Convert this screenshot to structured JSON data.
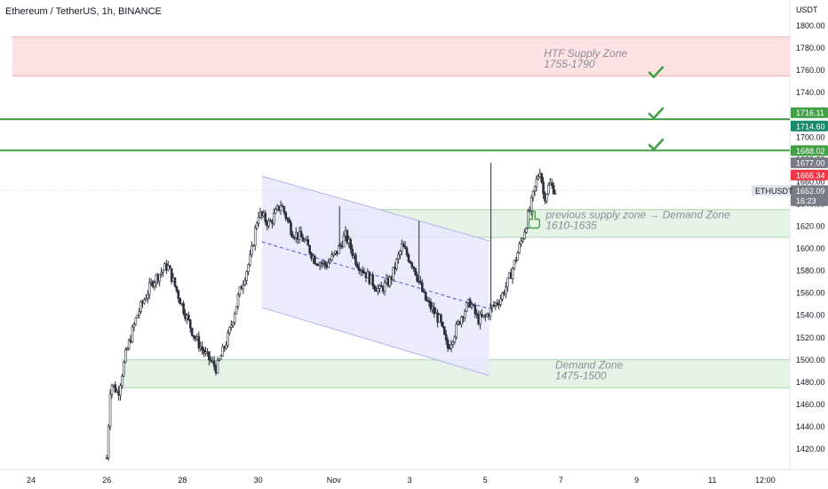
{
  "header": {
    "title": "Ethereum / TetherUS, 1h, BINANCE",
    "currency": "USDT"
  },
  "chart_data": {
    "type": "candlestick",
    "symbol": "ETHUSDT",
    "ylim": [
      1405,
      1818
    ],
    "x_day_range": [
      23.5,
      37.8
    ],
    "y_ticks": [
      "1420.00",
      "1440.00",
      "1460.00",
      "1480.00",
      "1500.00",
      "1520.00",
      "1540.00",
      "1560.00",
      "1580.00",
      "1600.00",
      "1620.00",
      "1640.00",
      "1660.00",
      "1680.00",
      "1700.00",
      "1720.00",
      "1740.00",
      "1760.00",
      "1780.00",
      "1800.00"
    ],
    "y_tick_values": [
      1420,
      1440,
      1460,
      1480,
      1500,
      1520,
      1540,
      1560,
      1580,
      1600,
      1620,
      1640,
      1660,
      1680,
      1700,
      1720,
      1740,
      1760,
      1780,
      1800
    ],
    "x_ticks": [
      {
        "label": "24",
        "day": 24
      },
      {
        "label": "26",
        "day": 26
      },
      {
        "label": "28",
        "day": 28
      },
      {
        "label": "30",
        "day": 30
      },
      {
        "label": "Nov",
        "day": 32
      },
      {
        "label": "3",
        "day": 34
      },
      {
        "label": "5",
        "day": 36
      },
      {
        "label": "7",
        "day": 38
      },
      {
        "label": "9",
        "day": 40
      },
      {
        "label": "11",
        "day": 42
      },
      {
        "label": "12:00",
        "day": 43.4
      }
    ],
    "anchors": [
      [
        26.0,
        1412
      ],
      [
        26.1,
        1480
      ],
      [
        26.3,
        1470
      ],
      [
        26.5,
        1505
      ],
      [
        26.8,
        1540
      ],
      [
        27.2,
        1570
      ],
      [
        27.6,
        1585
      ],
      [
        28.0,
        1548
      ],
      [
        28.3,
        1522
      ],
      [
        28.6,
        1505
      ],
      [
        28.9,
        1492
      ],
      [
        29.2,
        1520
      ],
      [
        29.5,
        1560
      ],
      [
        29.8,
        1592
      ],
      [
        30.0,
        1632
      ],
      [
        30.3,
        1622
      ],
      [
        30.6,
        1640
      ],
      [
        30.9,
        1615
      ],
      [
        31.2,
        1608
      ],
      [
        31.5,
        1590
      ],
      [
        31.8,
        1585
      ],
      [
        32.1,
        1598
      ],
      [
        32.3,
        1612
      ],
      [
        32.6,
        1588
      ],
      [
        32.9,
        1575
      ],
      [
        33.2,
        1562
      ],
      [
        33.5,
        1572
      ],
      [
        33.8,
        1602
      ],
      [
        34.1,
        1585
      ],
      [
        34.4,
        1555
      ],
      [
        34.6,
        1545
      ],
      [
        34.8,
        1535
      ],
      [
        35.0,
        1510
      ],
      [
        35.2,
        1525
      ],
      [
        35.4,
        1542
      ],
      [
        35.6,
        1552
      ],
      [
        35.8,
        1536
      ],
      [
        36.0,
        1538
      ],
      [
        36.2,
        1548
      ],
      [
        36.4,
        1555
      ],
      [
        36.6,
        1570
      ],
      [
        36.8,
        1590
      ],
      [
        37.0,
        1612
      ],
      [
        37.2,
        1638
      ],
      [
        37.35,
        1660
      ],
      [
        37.45,
        1672
      ],
      [
        37.55,
        1645
      ],
      [
        37.7,
        1658
      ],
      [
        37.85,
        1652
      ]
    ],
    "candle_count": 264,
    "candle_spread": 5,
    "wick_spikes": [
      {
        "day": 32.15,
        "high": 1638
      },
      {
        "day": 34.25,
        "high": 1625
      },
      {
        "day": 36.15,
        "high": 1677
      }
    ],
    "channel": {
      "upper": [
        [
          30.1,
          1665
        ],
        [
          36.1,
          1607
        ]
      ],
      "lower": [
        [
          30.1,
          1547
        ],
        [
          36.1,
          1486
        ]
      ],
      "mid": [
        [
          30.1,
          1606
        ],
        [
          36.1,
          1546
        ]
      ]
    },
    "zones": [
      {
        "name": "htf-supply",
        "low": 1755,
        "high": 1790,
        "from_day": 23.5,
        "fill": "#fde2e4",
        "edge": "#f3a6ab",
        "label_lines": [
          "HTF Supply Zone",
          "1755-1790"
        ],
        "label_day": 37.55,
        "label_price": 1769
      },
      {
        "name": "demand-upper",
        "low": 1610,
        "high": 1635,
        "from_day": 32.15,
        "fill": "#e5f3e6",
        "edge": "#a8d5ab",
        "label_lines": [
          "previous supply zone →   Demand Zone",
          "1610-1635"
        ],
        "label_day": 37.6,
        "label_price": 1624
      },
      {
        "name": "demand-lower",
        "low": 1475,
        "high": 1500,
        "from_day": 26.4,
        "fill": "#e5f3e6",
        "edge": "#a8d5ab",
        "label_lines": [
          "Demand Zone",
          "1475-1500"
        ],
        "label_day": 37.85,
        "label_price": 1489
      }
    ],
    "target_lines": [
      {
        "price": 1716.11,
        "color": "#43a047"
      },
      {
        "price": 1688.02,
        "color": "#43a047"
      }
    ],
    "checkmarks": [
      {
        "day": 40.5,
        "price": 1758
      },
      {
        "day": 40.5,
        "price": 1721
      },
      {
        "day": 40.5,
        "price": 1693
      }
    ],
    "price_labels": [
      {
        "text": "1716.11",
        "price": 1722,
        "bg": "#43a047",
        "fg": "#ffffff"
      },
      {
        "text": "1714.60",
        "price": 1710,
        "bg": "#1b8a6b",
        "fg": "#ffffff"
      },
      {
        "text": "1688.02",
        "price": 1688,
        "bg": "#43a047",
        "fg": "#ffffff"
      },
      {
        "text": "1677.00",
        "price": 1677,
        "bg": "#787b86",
        "fg": "#ffffff"
      },
      {
        "text": "1666.34",
        "price": 1666,
        "bg": "#f23645",
        "fg": "#ffffff"
      },
      {
        "text": "1652.09",
        "price": 1652,
        "bg": "#787b86",
        "fg": "#ffffff"
      },
      {
        "text": "16:23",
        "price": 1643,
        "bg": "#787b86",
        "fg": "#ffffff"
      }
    ],
    "last_price": 1652.09,
    "colors": {
      "candle": "#2a2e39",
      "channel_fill": "#e8e8fb",
      "channel_edge": "#b3b3ee",
      "channel_mid": "#4a55d8",
      "zone_text": "#8a8e99",
      "check": "#43a047",
      "hand": "#43a047"
    }
  }
}
